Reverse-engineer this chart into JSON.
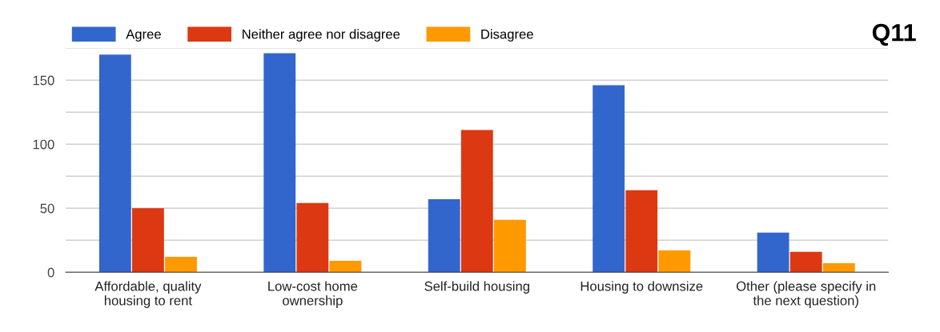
{
  "chart_data": {
    "type": "bar",
    "title": "Q11",
    "categories": [
      "Affordable, quality\nhousing to rent",
      "Low-cost home\nownership",
      "Self-build housing",
      "Housing to downsize",
      "Other (please specify in\nthe next question)"
    ],
    "series": [
      {
        "name": "Agree",
        "color": "#3366cc",
        "values": [
          170,
          171,
          57,
          146,
          31
        ]
      },
      {
        "name": "Neither agree nor disagree",
        "color": "#dc3912",
        "values": [
          50,
          54,
          111,
          64,
          16
        ]
      },
      {
        "name": "Disagree",
        "color": "#ff9900",
        "values": [
          12,
          9,
          41,
          17,
          7
        ]
      }
    ],
    "ylim": [
      0,
      175
    ],
    "yticks": [
      0,
      {
        "value": 25,
        "label": null
      },
      50,
      {
        "value": 75,
        "label": null
      },
      100,
      {
        "value": 125,
        "label": null
      },
      150,
      {
        "value": 175,
        "label": null
      }
    ],
    "grid": "y",
    "legend": "top left"
  }
}
